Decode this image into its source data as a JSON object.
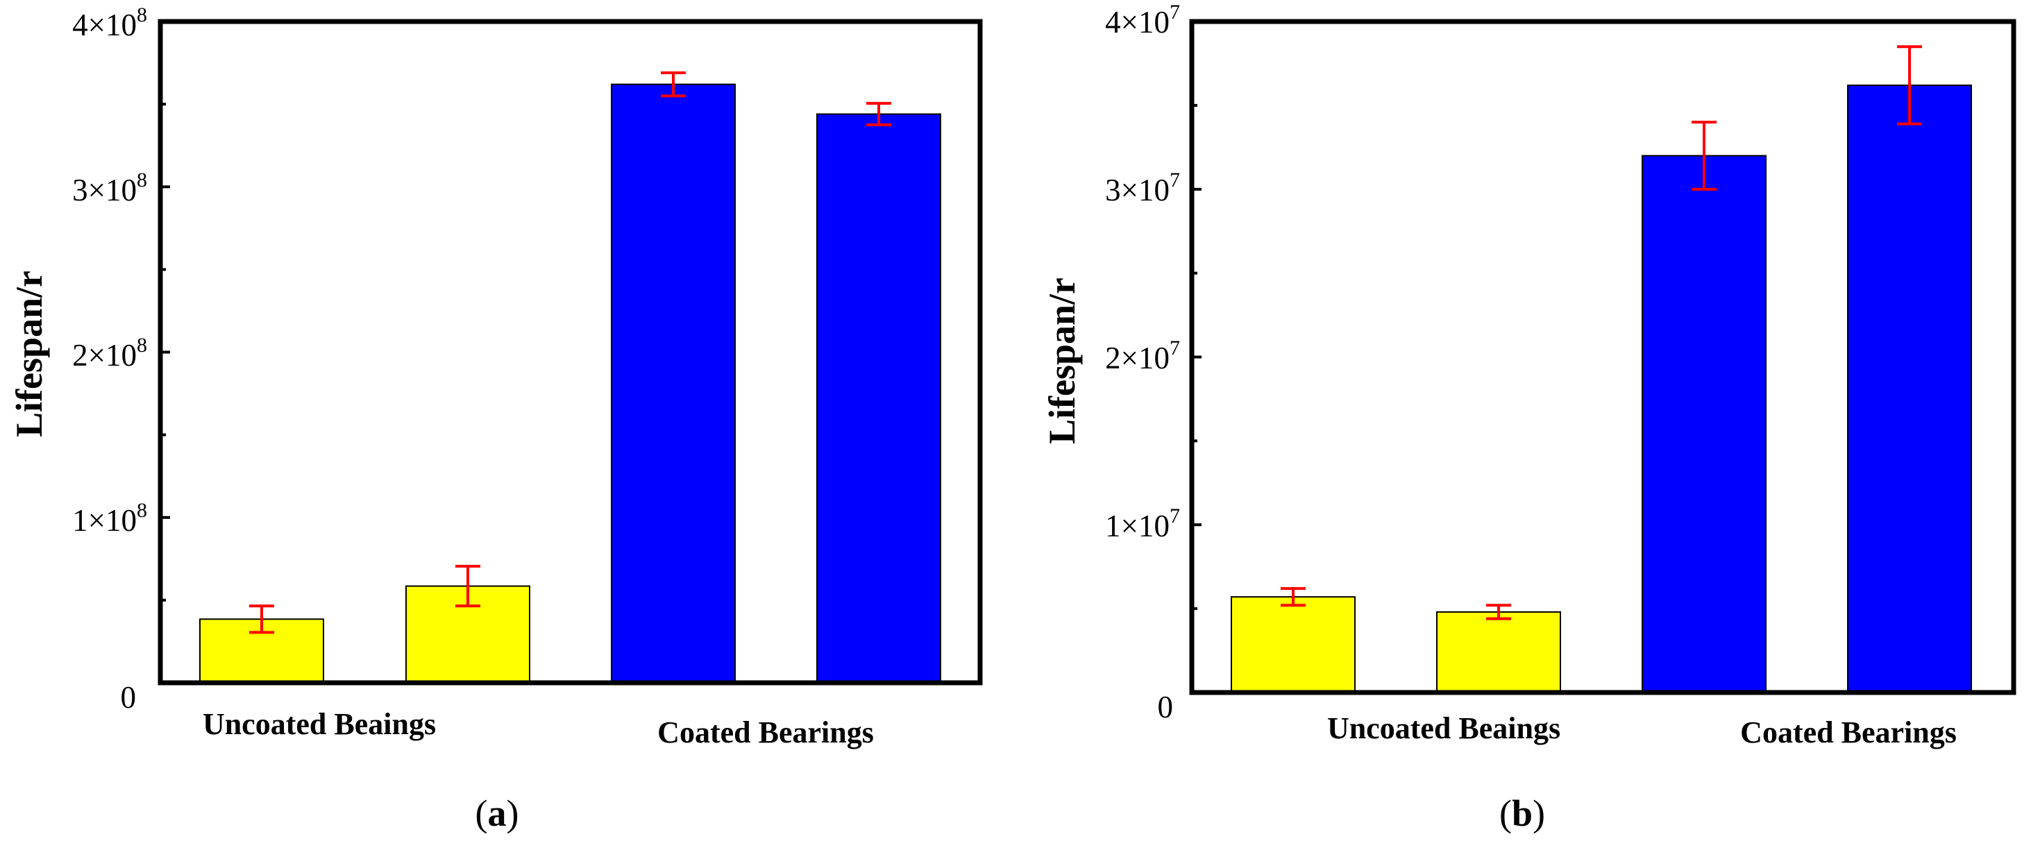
{
  "chart_data": [
    {
      "type": "bar",
      "panel_label": "a",
      "ylabel": "Lifespan/r",
      "ylim": [
        0,
        400000000
      ],
      "y_ticks": [
        {
          "value": 0,
          "label": "0"
        },
        {
          "value": 100000000,
          "mantissa": "1×10",
          "exponent": "8"
        },
        {
          "value": 200000000,
          "mantissa": "2×10",
          "exponent": "8"
        },
        {
          "value": 300000000,
          "mantissa": "3×10",
          "exponent": "8"
        },
        {
          "value": 400000000,
          "mantissa": "4×10",
          "exponent": "8"
        }
      ],
      "groups": [
        {
          "label": "Uncoated Beaings",
          "color": "#ffff00"
        },
        {
          "label": "Coated Bearings",
          "color": "#0000ff"
        }
      ],
      "bars": [
        {
          "group": 0,
          "value": 38500000,
          "error": 8000000
        },
        {
          "group": 0,
          "value": 58500000,
          "error": 12000000
        },
        {
          "group": 1,
          "value": 362000000,
          "error": 7000000
        },
        {
          "group": 1,
          "value": 344000000,
          "error": 6500000
        }
      ],
      "error_bar_color": "#ff0000"
    },
    {
      "type": "bar",
      "panel_label": "b",
      "ylabel": "Lifespan/r",
      "ylim": [
        0,
        40000000
      ],
      "y_ticks": [
        {
          "value": 0,
          "label": "0"
        },
        {
          "value": 10000000,
          "mantissa": "1×10",
          "exponent": "7"
        },
        {
          "value": 20000000,
          "mantissa": "2×10",
          "exponent": "7"
        },
        {
          "value": 30000000,
          "mantissa": "3×10",
          "exponent": "7"
        },
        {
          "value": 40000000,
          "mantissa": "4×10",
          "exponent": "7"
        }
      ],
      "groups": [
        {
          "label": "Uncoated Beaings",
          "color": "#ffff00"
        },
        {
          "label": "Coated Bearings",
          "color": "#0000ff"
        }
      ],
      "bars": [
        {
          "group": 0,
          "value": 5700000,
          "error": 500000
        },
        {
          "group": 0,
          "value": 4800000,
          "error": 400000
        },
        {
          "group": 1,
          "value": 32000000,
          "error": 2000000
        },
        {
          "group": 1,
          "value": 36200000,
          "error": 2300000
        }
      ],
      "error_bar_color": "#ff0000"
    }
  ]
}
